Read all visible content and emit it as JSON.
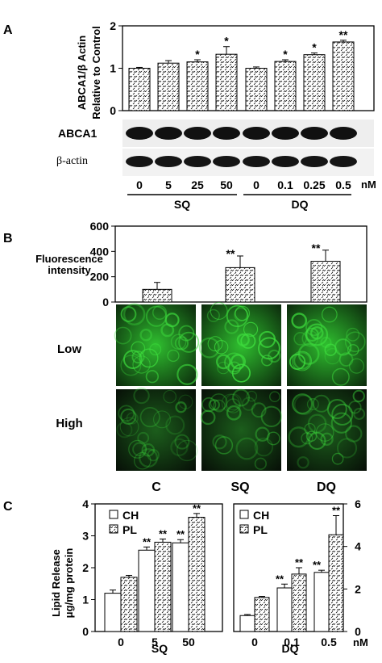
{
  "panels": {
    "a": "A",
    "b": "B",
    "c": "C"
  },
  "chart_data": [
    {
      "type": "bar",
      "panel": "A",
      "ylabel": "ABCA1/β Actin Relative to Control",
      "ylabel_line1": "ABCA1/β Actin",
      "ylabel_line2": "Relative to Control",
      "ylim": [
        0,
        2
      ],
      "yticks": [
        "0",
        "1",
        "2"
      ],
      "categories": [
        "0",
        "5",
        "25",
        "50",
        "0",
        "0.1",
        "0.25",
        "0.5"
      ],
      "values": [
        1.0,
        1.12,
        1.15,
        1.33,
        1.0,
        1.16,
        1.32,
        1.62
      ],
      "errors": [
        0.02,
        0.06,
        0.05,
        0.18,
        0.03,
        0.04,
        0.04,
        0.04
      ],
      "significance": [
        "",
        "",
        "*",
        "*",
        "",
        "*",
        "*",
        "**"
      ],
      "unit": "nM",
      "groups": [
        {
          "label": "SQ",
          "start": 0,
          "end": 3
        },
        {
          "label": "DQ",
          "start": 4,
          "end": 7
        }
      ],
      "blot_labels": [
        "ABCA1",
        "β-actin"
      ]
    },
    {
      "type": "bar",
      "panel": "B",
      "ylabel_line1": "Fluorescence",
      "ylabel_line2": "intensity",
      "ylim": [
        0,
        600
      ],
      "yticks": [
        "0",
        "200",
        "400",
        "600"
      ],
      "categories": [
        "C",
        "SQ",
        "DQ"
      ],
      "values": [
        100,
        272,
        322
      ],
      "errors": [
        55,
        92,
        88
      ],
      "significance": [
        "",
        "**",
        "**"
      ],
      "row_labels": [
        "Low",
        "High"
      ]
    },
    {
      "type": "bar",
      "panel": "C-SQ",
      "ylabel_line1": "Lipid Release",
      "ylabel_line2": "μg/mg protein",
      "ylim": [
        0,
        4
      ],
      "yticks": [
        "0",
        "1",
        "2",
        "3",
        "4"
      ],
      "categories": [
        "0",
        "5",
        "50"
      ],
      "xlabel": "SQ",
      "legend": [
        "CH",
        "PL"
      ],
      "series": [
        {
          "name": "CH",
          "values": [
            1.2,
            2.55,
            2.78
          ],
          "errors": [
            0.1,
            0.1,
            0.1
          ],
          "significance": [
            "",
            "**",
            "**"
          ]
        },
        {
          "name": "PL",
          "values": [
            1.7,
            2.8,
            3.58
          ],
          "errors": [
            0.06,
            0.1,
            0.12
          ],
          "significance": [
            "",
            "**",
            "**"
          ]
        }
      ]
    },
    {
      "type": "bar",
      "panel": "C-DQ",
      "ylim": [
        0,
        6
      ],
      "yticks": [
        "0",
        "2",
        "4",
        "6"
      ],
      "yaxis_side": "right",
      "categories": [
        "0",
        "0.1",
        "0.5"
      ],
      "xlabel": "DQ",
      "unit": "nM",
      "legend": [
        "CH",
        "PL"
      ],
      "series": [
        {
          "name": "CH",
          "values": [
            0.75,
            2.05,
            2.78
          ],
          "errors": [
            0.05,
            0.18,
            0.1
          ],
          "significance": [
            "",
            "**",
            "**"
          ]
        },
        {
          "name": "PL",
          "values": [
            1.6,
            2.7,
            4.55
          ],
          "errors": [
            0.05,
            0.3,
            0.9
          ],
          "significance": [
            "",
            "**",
            "**"
          ]
        }
      ]
    }
  ],
  "colors": {
    "fluorescence": "#3ddc3d",
    "background_micro": "#0a0f0a"
  }
}
